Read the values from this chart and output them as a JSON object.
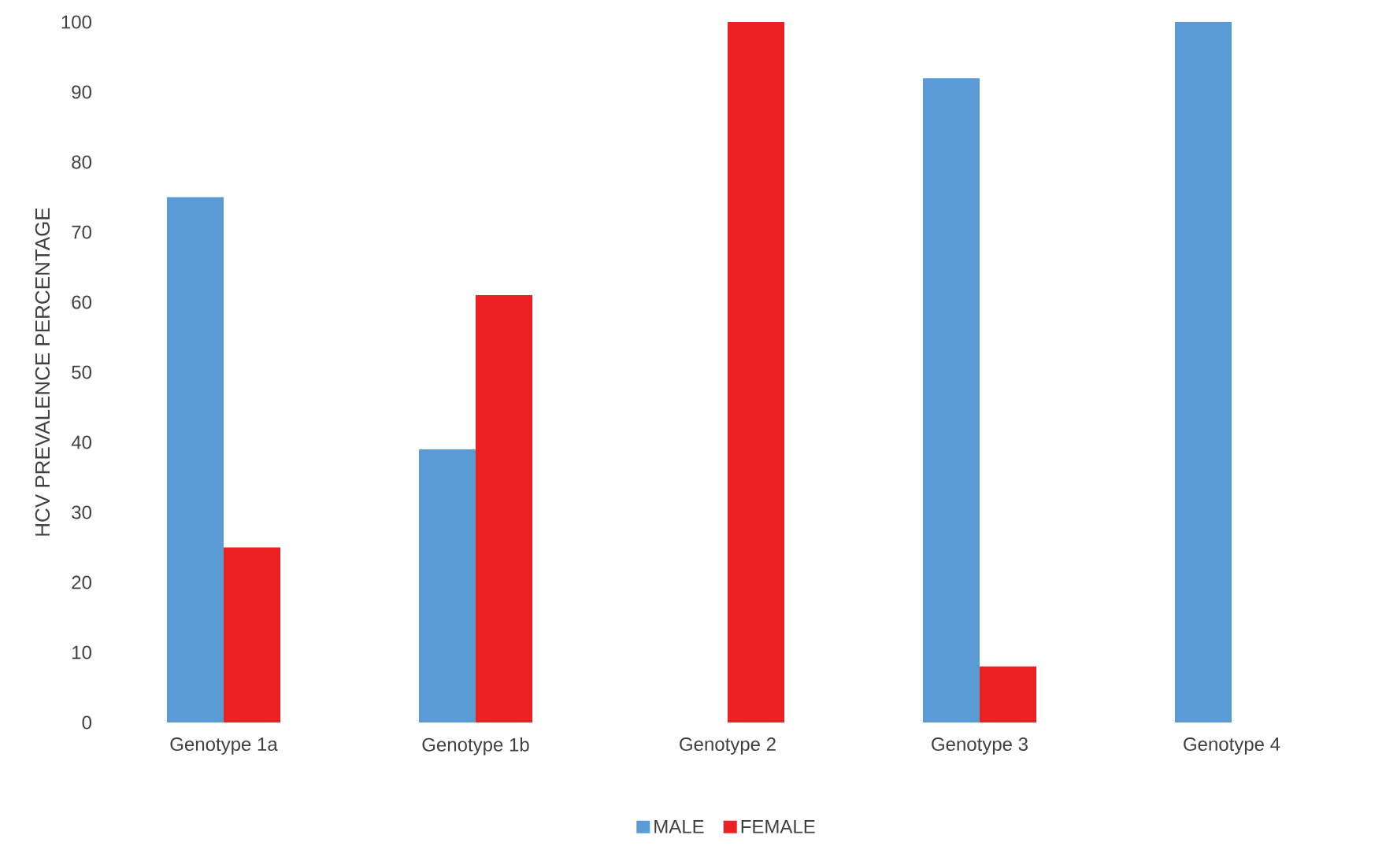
{
  "chart_data": {
    "type": "bar",
    "ylabel": "HCV PREVALENCE PERCENTAGE",
    "categories": [
      "Genotype 1a",
      "Genotype 1b",
      "Genotype 2",
      "Genotype 3",
      "Genotype 4"
    ],
    "series": [
      {
        "name": "MALE",
        "color": "#5b9bd5",
        "values": [
          75,
          39,
          0,
          92,
          100
        ]
      },
      {
        "name": "FEMALE",
        "color": "#ed2024",
        "values": [
          25,
          61,
          100,
          8,
          0
        ]
      }
    ],
    "ylim": [
      0,
      100
    ],
    "yticks": [
      0,
      10,
      20,
      30,
      40,
      50,
      60,
      70,
      80,
      90,
      100
    ],
    "legend": "bottom"
  }
}
